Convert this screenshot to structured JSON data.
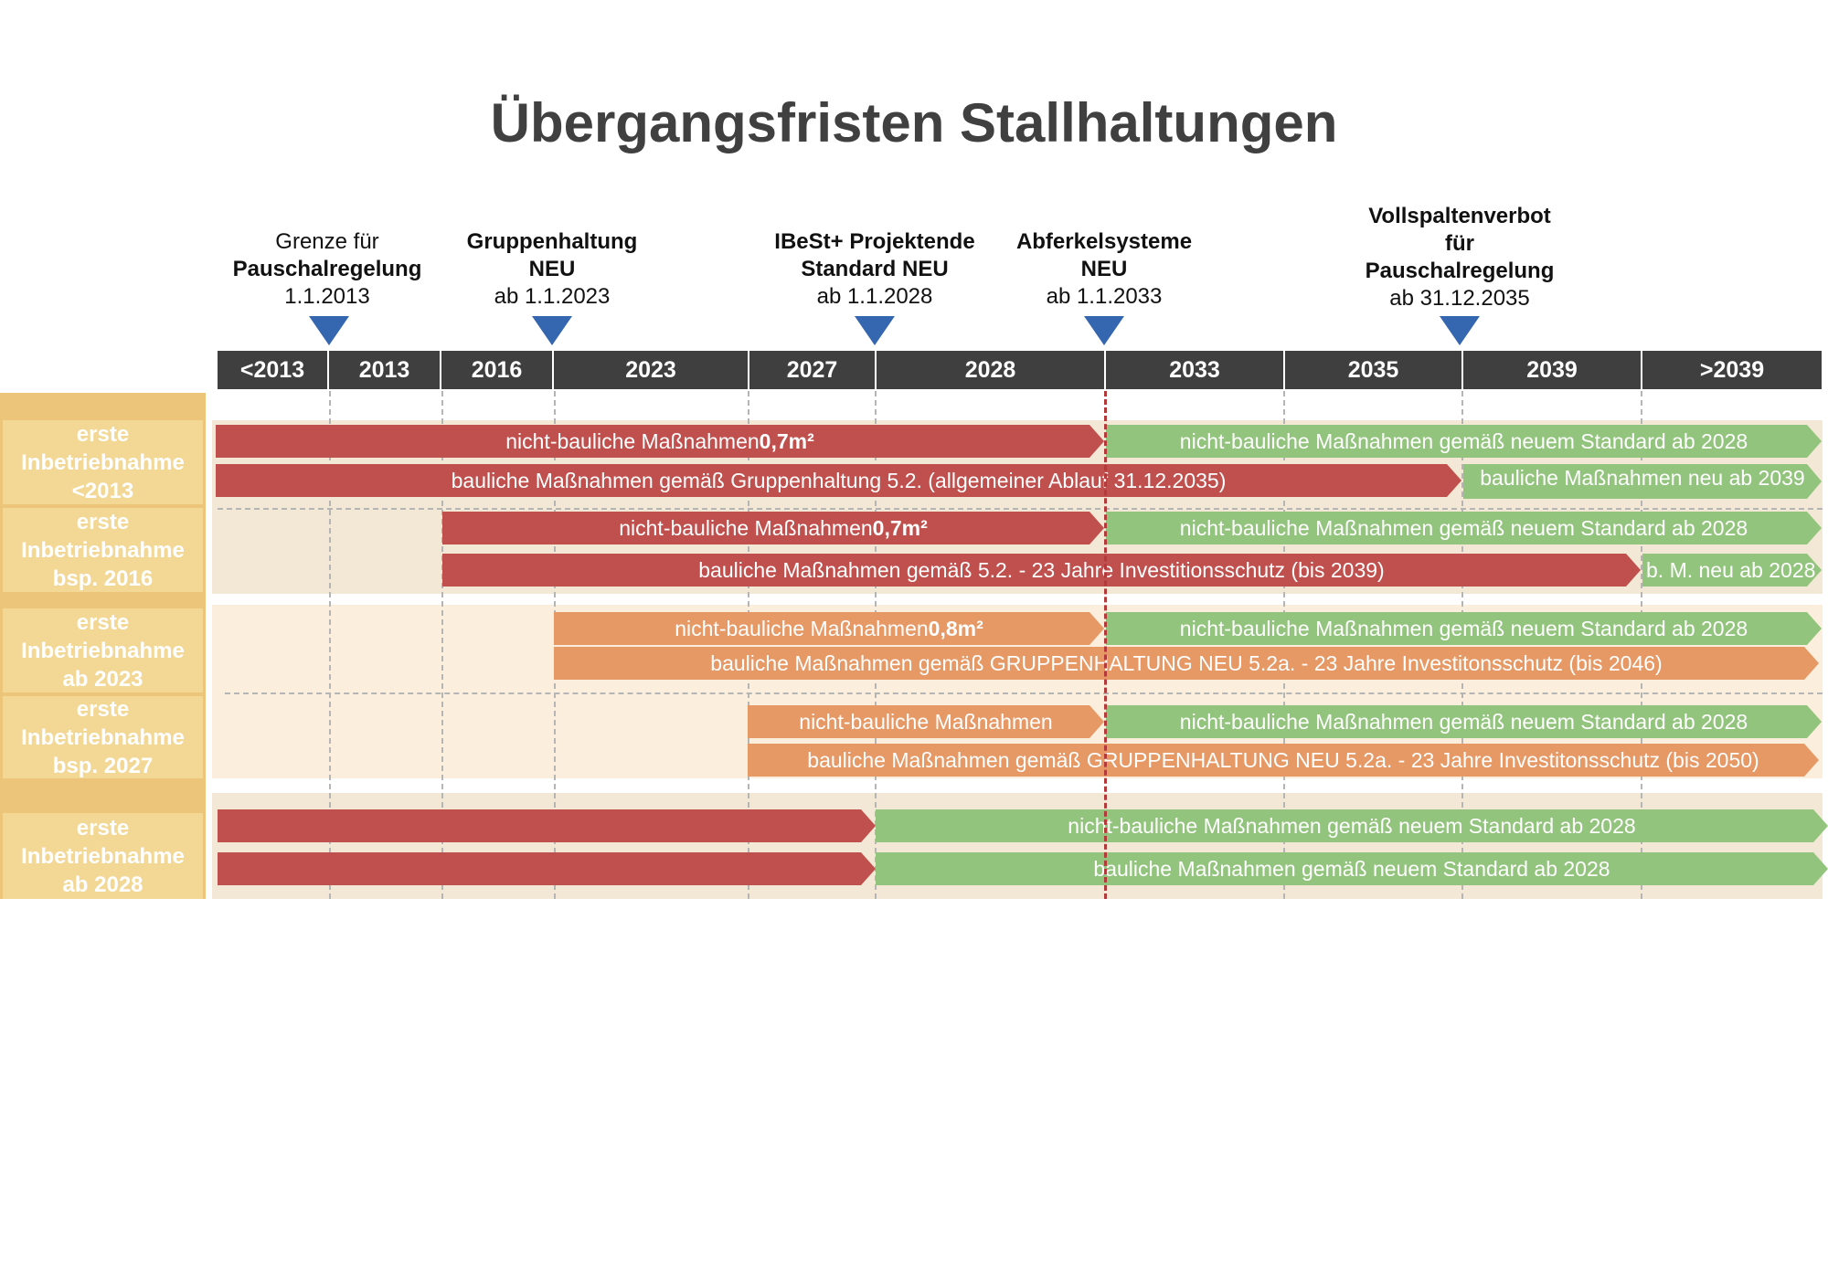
{
  "title": "Übergangsfristen Stallhaltungen",
  "colors": {
    "header_bg": "#3f3f3f",
    "marker": "#3566b0",
    "sidebar": "#edc57a",
    "label_bg": "#f2d795",
    "red": "#c0504d",
    "green": "#93c47d",
    "orange": "#e69865",
    "band_red": "#f3e8d6",
    "band_orange": "#fbeedd"
  },
  "milestones": [
    {
      "lines": [
        "Grenze für",
        "Pauschalregelung",
        "1.1.2013"
      ],
      "bold": [
        1
      ],
      "icon": "triangle-down-icon"
    },
    {
      "lines": [
        "Gruppenhaltung",
        "NEU",
        "ab 1.1.2023"
      ],
      "bold": [
        0,
        1
      ],
      "icon": "triangle-down-icon"
    },
    {
      "lines": [
        "IBeSt+ Projektende",
        "Standard NEU",
        "ab 1.1.2028"
      ],
      "bold": [
        0,
        1
      ],
      "icon": "triangle-down-icon"
    },
    {
      "lines": [
        "Abferkelsysteme",
        "NEU",
        "ab 1.1.2033"
      ],
      "bold": [
        0,
        1
      ],
      "icon": "triangle-down-icon"
    },
    {
      "lines": [
        "Vollspaltenverbot",
        "für",
        "Pauschalregelung",
        "ab 31.12.2035"
      ],
      "bold": [
        0,
        1,
        2
      ],
      "icon": "triangle-down-icon"
    }
  ],
  "timeline": [
    "<2013",
    "2013",
    "2016",
    "2023",
    "2027",
    "2028",
    "2033",
    "2035",
    "2039",
    ">2039"
  ],
  "rows": [
    {
      "label": [
        "erste",
        "Inbetriebnahme",
        "<2013"
      ],
      "bars": [
        {
          "text": "nicht-bauliche Maßnahmen ",
          "bold": "0,7m²",
          "color": "red"
        },
        {
          "text": "nicht-bauliche Maßnahmen gemäß neuem Standard ab 2028",
          "color": "green"
        },
        {
          "text": "bauliche Maßnahmen gemäß Gruppenhaltung 5.2. (allgemeiner Ablauf 31.12.2035)",
          "color": "red"
        },
        {
          "text": "bauliche Maßnahmen neu ab 2039",
          "color": "green"
        }
      ]
    },
    {
      "label": [
        "erste",
        "Inbetriebnahme",
        "bsp. 2016"
      ],
      "bars": [
        {
          "text": "nicht-bauliche Maßnahmen ",
          "bold": "0,7m²",
          "color": "red"
        },
        {
          "text": "nicht-bauliche Maßnahmen gemäß neuem Standard ab 2028",
          "color": "green"
        },
        {
          "text": "bauliche Maßnahmen gemäß  5.2. - 23 Jahre Investitionsschutz (bis 2039)",
          "color": "red"
        },
        {
          "text": "b. M. neu ab 2028",
          "color": "green"
        }
      ]
    },
    {
      "label": [
        "erste",
        "Inbetriebnahme",
        "ab 2023"
      ],
      "bars": [
        {
          "text": "nicht-bauliche Maßnahmen ",
          "bold": "0,8m²",
          "color": "orange"
        },
        {
          "text": "nicht-bauliche Maßnahmen gemäß neuem Standard ab 2028",
          "color": "green"
        },
        {
          "text": "bauliche Maßnahmen gemäß GRUPPENHALTUNG NEU 5.2a. - 23 Jahre Investitonsschutz (bis 2046)",
          "color": "orange"
        }
      ]
    },
    {
      "label": [
        "erste",
        "Inbetriebnahme",
        "bsp. 2027"
      ],
      "bars": [
        {
          "text": "nicht-bauliche Maßnahmen",
          "color": "orange"
        },
        {
          "text": "nicht-bauliche Maßnahmen gemäß neuem Standard ab 2028",
          "color": "green"
        },
        {
          "text": "bauliche Maßnahmen gemäß GRUPPENHALTUNG NEU 5.2a. - 23 Jahre Investitonsschutz (bis 2050)",
          "color": "orange"
        }
      ]
    },
    {
      "label": [
        "erste",
        "Inbetriebnahme",
        "ab 2028"
      ],
      "bars": [
        {
          "text": "",
          "color": "red"
        },
        {
          "text": "nicht-bauliche Maßnahmen gemäß neuem Standard ab 2028",
          "color": "green"
        },
        {
          "text": "",
          "color": "red"
        },
        {
          "text": "bauliche Maßnahmen gemäß neuem Standard ab 2028",
          "color": "green"
        }
      ]
    }
  ]
}
